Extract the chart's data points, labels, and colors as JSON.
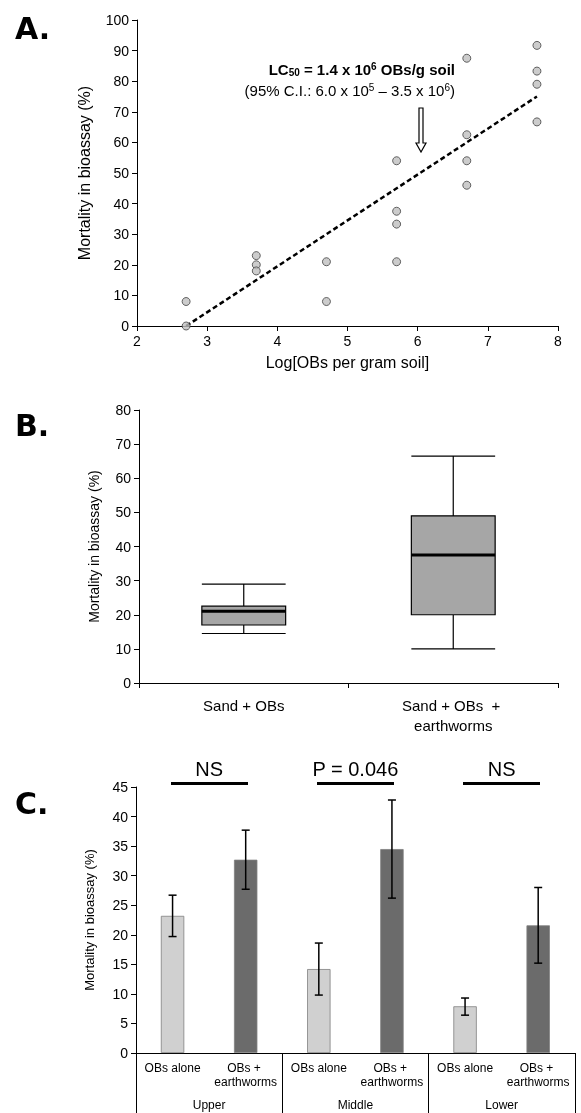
{
  "chart_data": [
    {
      "type": "scatter",
      "title": "A.",
      "xlabel": "Log[OBs per gram soil]",
      "ylabel": "Mortality in bioassay (%)",
      "annotations": [
        "LC$_{50}$ = 1.4 x 10$^{6}$ OBs/g soil",
        "(95% C.I.: 6.0 x 10$^{5}$ – 3.5 x 10$^{6}$)"
      ],
      "series": [
        {
          "type": "scatter",
          "color": "#bfbfbf",
          "x": [
            2.7,
            2.7,
            3.7,
            3.7,
            3.7,
            4.7,
            4.7,
            5.7,
            5.7,
            5.7,
            5.7,
            6.7,
            6.7,
            6.7,
            6.7,
            7.7,
            7.7,
            7.7,
            7.7
          ],
          "values": [
            8,
            0,
            23,
            20,
            18,
            21,
            8,
            54,
            37.5,
            33.3,
            21,
            87.5,
            62.5,
            54,
            46,
            91.7,
            83.3,
            79,
            66.7
          ]
        },
        {
          "type": "line",
          "color": "#000000",
          "x": [
            2.7,
            7.7
          ],
          "values": [
            0,
            75
          ]
        }
      ],
      "line_style": "dashed",
      "xlim": [
        2,
        8
      ],
      "xticks": [
        2,
        3,
        4,
        5,
        6,
        7,
        8
      ],
      "ylim": [
        0,
        100
      ],
      "yticks": [
        0,
        10,
        20,
        30,
        40,
        50,
        60,
        70,
        80,
        90,
        100
      ],
      "grid": false
    },
    {
      "type": "box",
      "title": "B.",
      "ylabel": "Mortality in bioassay (%)",
      "categories": [
        "Sand + OBs",
        "Sand + OBs  + earthworms"
      ],
      "color": "#a6a6a6",
      "boxes": [
        {
          "low": 14.5,
          "q1": 17,
          "median": 21,
          "q3": 22.5,
          "high": 29
        },
        {
          "low": 10,
          "q1": 20,
          "median": 37.5,
          "q3": 49,
          "high": 66.5
        }
      ],
      "ylim": [
        0,
        80
      ],
      "yticks": [
        0,
        10,
        20,
        30,
        40,
        50,
        60,
        70,
        80
      ],
      "grid": false
    },
    {
      "type": "bar",
      "title": "C.",
      "ylabel": "Mortality in bioassay (%)",
      "categories": [
        "Upper",
        "Middle",
        "Lower"
      ],
      "series": [
        {
          "name": "OBs alone",
          "color": "#d0d0d0",
          "values": [
            23.2,
            14.2,
            7.9
          ],
          "errors": [
            [
              19.7,
              26.7
            ],
            [
              9.8,
              18.6
            ],
            [
              6.4,
              9.3
            ]
          ]
        },
        {
          "name": "OBs + earthworms",
          "color": "#6b6b6b",
          "values": [
            32.7,
            34.5,
            21.6
          ],
          "errors": [
            [
              27.7,
              37.7
            ],
            [
              26.2,
              42.8
            ],
            [
              15.2,
              28
            ]
          ]
        }
      ],
      "annotations": [
        "NS",
        "P = 0.046",
        "NS"
      ],
      "ylim": [
        0,
        45
      ],
      "yticks": [
        0,
        5,
        10,
        15,
        20,
        25,
        30,
        35,
        40,
        45
      ],
      "grid": false
    }
  ]
}
